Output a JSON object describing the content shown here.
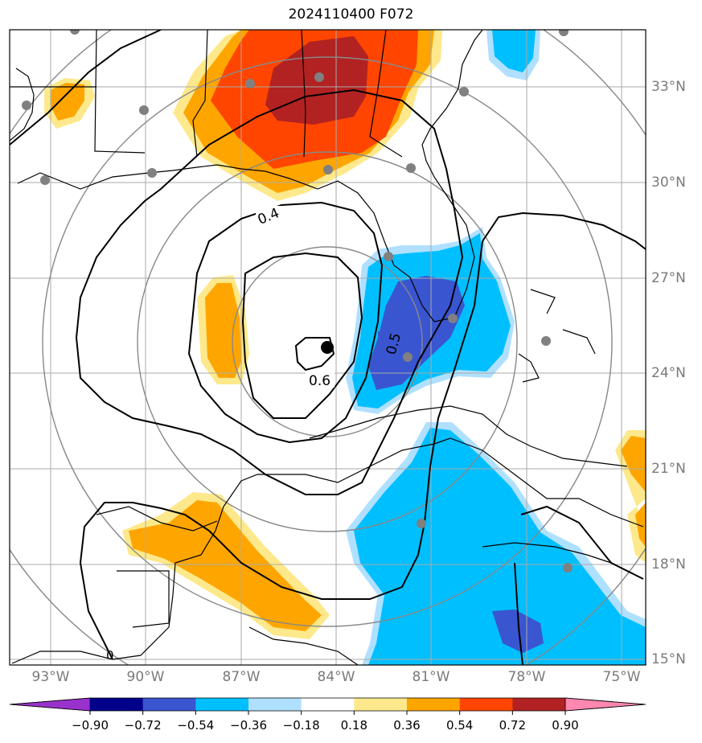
{
  "title": "2024110400 F072",
  "lat_labels": [
    "33°N",
    "30°N",
    "27°N",
    "24°N",
    "21°N",
    "18°N",
    "15°N"
  ],
  "lon_labels": [
    "93°W",
    "90°W",
    "87°W",
    "84°W",
    "81°W",
    "78°W",
    "75°W"
  ],
  "contour_labels": [
    "0.4",
    "0.5",
    "0.6"
  ],
  "colorbar": {
    "ticks": [
      "−0.90",
      "−0.72",
      "−0.54",
      "−0.36",
      "−0.18",
      "0.18",
      "0.36",
      "0.54",
      "0.72",
      "0.90"
    ],
    "colors": [
      "#9932cc",
      "#00008b",
      "#3a55d0",
      "#00bfff",
      "#b0e0ff",
      "#ffffff",
      "#fde98b",
      "#ffa500",
      "#ff4500",
      "#b22222",
      "#ff87b0"
    ]
  },
  "colors": {
    "orange": "#ffa500",
    "red": "#ff4500",
    "dark_red": "#b22222",
    "light_yellow": "#fde98b",
    "blue": "#00bfff",
    "light_blue": "#b0e0ff",
    "royal_blue": "#3a55d0",
    "grid": "#aaaaaa",
    "ring": "#888888",
    "station": "#808080"
  }
}
